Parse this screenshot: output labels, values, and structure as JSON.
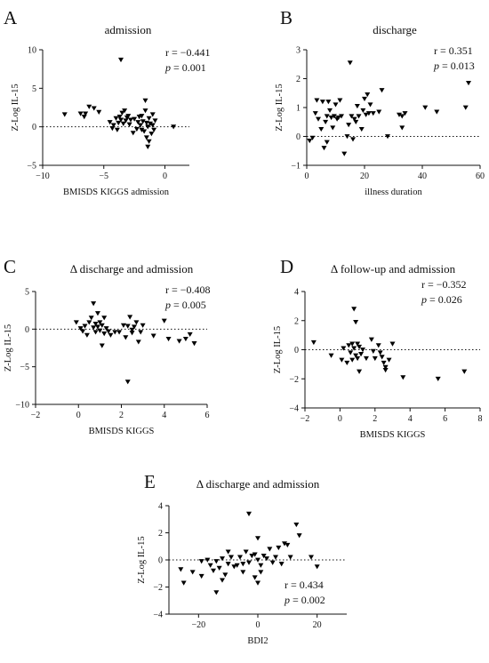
{
  "chart_data": [
    {
      "type": "scatter",
      "panel_letter": "A",
      "title": "admission",
      "xlabel": "BMISDS KIGGS admission",
      "ylabel": "Z-Log IL-15",
      "xlim": [
        -10,
        2
      ],
      "ylim": [
        -5,
        10
      ],
      "xticks": [
        -10,
        -5,
        0
      ],
      "yticks": [
        -5,
        0,
        5,
        10
      ],
      "grid": false,
      "reference_line_y": 0,
      "stat_r": "r = −0.441",
      "stat_p_label": "p",
      "stat_p_value": " = 0.001",
      "stat_position": "top-right",
      "points": [
        [
          -8.2,
          1.6
        ],
        [
          -6.9,
          1.7
        ],
        [
          -6.6,
          1.3
        ],
        [
          -6.5,
          1.7
        ],
        [
          -6.2,
          2.6
        ],
        [
          -5.8,
          2.4
        ],
        [
          -5.4,
          1.9
        ],
        [
          -4.5,
          0.6
        ],
        [
          -4.3,
          -0.2
        ],
        [
          -4.2,
          0.2
        ],
        [
          -4.0,
          1.1
        ],
        [
          -3.9,
          -0.4
        ],
        [
          -3.8,
          0.5
        ],
        [
          -3.7,
          1.3
        ],
        [
          -3.6,
          8.7
        ],
        [
          -3.6,
          0.9
        ],
        [
          -3.5,
          1.8
        ],
        [
          -3.4,
          0.4
        ],
        [
          -3.3,
          2.1
        ],
        [
          -3.2,
          0.8
        ],
        [
          -3.1,
          1.2
        ],
        [
          -3.0,
          1.4
        ],
        [
          -2.9,
          0.3
        ],
        [
          -2.8,
          0.9
        ],
        [
          -2.6,
          -0.8
        ],
        [
          -2.5,
          1.0
        ],
        [
          -2.3,
          -0.3
        ],
        [
          -2.2,
          0.6
        ],
        [
          -2.1,
          1.3
        ],
        [
          -2.0,
          0.2
        ],
        [
          -1.9,
          -0.4
        ],
        [
          -1.9,
          1.4
        ],
        [
          -1.8,
          0.7
        ],
        [
          -1.7,
          -0.6
        ],
        [
          -1.6,
          2.1
        ],
        [
          -1.6,
          3.4
        ],
        [
          -1.5,
          0.5
        ],
        [
          -1.5,
          -1.4
        ],
        [
          -1.4,
          0.0
        ],
        [
          -1.4,
          -2.6
        ],
        [
          -1.3,
          1.1
        ],
        [
          -1.3,
          -1.9
        ],
        [
          -1.2,
          0.4
        ],
        [
          -1.1,
          -0.9
        ],
        [
          -1.0,
          0.2
        ],
        [
          -1.0,
          1.6
        ],
        [
          -0.9,
          -0.4
        ],
        [
          -0.8,
          0.8
        ],
        [
          0.7,
          0.0
        ]
      ]
    },
    {
      "type": "scatter",
      "panel_letter": "B",
      "title": "discharge",
      "xlabel": "illness duration",
      "ylabel": "Z-Log IL-15",
      "xlim": [
        0,
        60
      ],
      "ylim": [
        -1,
        3
      ],
      "xticks": [
        0,
        20,
        40,
        60
      ],
      "yticks": [
        -1,
        0,
        1,
        2,
        3
      ],
      "grid": false,
      "reference_line_y": 0,
      "stat_r": "r = 0.351",
      "stat_p_label": "p",
      "stat_p_value": " = 0.013",
      "stat_position": "top-right",
      "points": [
        [
          1,
          -0.15
        ],
        [
          2,
          -0.05
        ],
        [
          3,
          0.8
        ],
        [
          3.5,
          1.25
        ],
        [
          4,
          0.6
        ],
        [
          5,
          0.25
        ],
        [
          5.5,
          1.2
        ],
        [
          6,
          -0.4
        ],
        [
          6.5,
          0.5
        ],
        [
          7,
          0.7
        ],
        [
          7,
          -0.2
        ],
        [
          7.5,
          1.2
        ],
        [
          8,
          0.9
        ],
        [
          8.5,
          0.65
        ],
        [
          9,
          0.3
        ],
        [
          9.5,
          0.7
        ],
        [
          10,
          1.1
        ],
        [
          10.5,
          0.6
        ],
        [
          11,
          0.65
        ],
        [
          11.5,
          1.25
        ],
        [
          12,
          0.7
        ],
        [
          13,
          -0.6
        ],
        [
          14,
          0.0
        ],
        [
          14.5,
          0.4
        ],
        [
          15,
          2.55
        ],
        [
          15.5,
          0.7
        ],
        [
          16,
          -0.1
        ],
        [
          16.5,
          0.6
        ],
        [
          17,
          0.5
        ],
        [
          17.5,
          1.05
        ],
        [
          18,
          0.7
        ],
        [
          19,
          0.25
        ],
        [
          19.5,
          0.9
        ],
        [
          20,
          1.3
        ],
        [
          20.5,
          0.75
        ],
        [
          21,
          1.45
        ],
        [
          21.5,
          0.8
        ],
        [
          22,
          1.1
        ],
        [
          23,
          0.8
        ],
        [
          25,
          0.85
        ],
        [
          26,
          1.6
        ],
        [
          28,
          0.0
        ],
        [
          32,
          0.75
        ],
        [
          33,
          0.7
        ],
        [
          33,
          0.3
        ],
        [
          34,
          0.8
        ],
        [
          41,
          1.0
        ],
        [
          45,
          0.85
        ],
        [
          55,
          1.0
        ],
        [
          56,
          1.85
        ]
      ]
    },
    {
      "type": "scatter",
      "panel_letter": "C",
      "title": "Δ discharge and admission",
      "xlabel": "BMISDS KIGGS",
      "ylabel": "Z-Log IL-15",
      "xlim": [
        -2,
        6
      ],
      "ylim": [
        -10,
        5
      ],
      "xticks": [
        -2,
        0,
        2,
        4,
        6
      ],
      "yticks": [
        -10,
        -5,
        0,
        5
      ],
      "grid": false,
      "reference_line_y": 0,
      "stat_r": "r = −0.408",
      "stat_p_label": "p",
      "stat_p_value": " = 0.005",
      "stat_position": "top-right",
      "points": [
        [
          -0.1,
          0.9
        ],
        [
          0.1,
          0.1
        ],
        [
          0.2,
          -0.3
        ],
        [
          0.3,
          0.4
        ],
        [
          0.4,
          -0.8
        ],
        [
          0.5,
          0.9
        ],
        [
          0.6,
          1.5
        ],
        [
          0.7,
          3.4
        ],
        [
          0.7,
          0.2
        ],
        [
          0.8,
          0.7
        ],
        [
          0.8,
          -0.4
        ],
        [
          0.9,
          2.1
        ],
        [
          0.9,
          0.3
        ],
        [
          1.0,
          0.9
        ],
        [
          1.0,
          -0.2
        ],
        [
          1.1,
          -2.2
        ],
        [
          1.1,
          0.5
        ],
        [
          1.2,
          1.5
        ],
        [
          1.2,
          -0.6
        ],
        [
          1.3,
          0.1
        ],
        [
          1.4,
          -0.3
        ],
        [
          1.5,
          -0.8
        ],
        [
          1.7,
          -0.4
        ],
        [
          1.9,
          -0.4
        ],
        [
          2.1,
          0.5
        ],
        [
          2.2,
          -1.1
        ],
        [
          2.3,
          0.4
        ],
        [
          2.3,
          -7.0
        ],
        [
          2.4,
          1.6
        ],
        [
          2.5,
          -0.5
        ],
        [
          2.5,
          -0.1
        ],
        [
          2.6,
          0.3
        ],
        [
          2.7,
          0.9
        ],
        [
          2.8,
          -1.7
        ],
        [
          2.9,
          -0.4
        ],
        [
          3.0,
          0.5
        ],
        [
          3.5,
          -0.9
        ],
        [
          4.0,
          1.1
        ],
        [
          4.2,
          -1.3
        ],
        [
          4.7,
          -1.6
        ],
        [
          5.0,
          -1.3
        ],
        [
          5.2,
          -0.7
        ],
        [
          5.4,
          -1.9
        ]
      ]
    },
    {
      "type": "scatter",
      "panel_letter": "D",
      "title": "Δ follow-up and admission",
      "xlabel": "BMISDS KIGGS",
      "ylabel": "Z-Log IL-15",
      "xlim": [
        -2,
        8
      ],
      "ylim": [
        -4,
        4
      ],
      "xticks": [
        -2,
        0,
        2,
        4,
        6,
        8
      ],
      "yticks": [
        -4,
        -2,
        0,
        2,
        4
      ],
      "grid": false,
      "reference_line_y": 0,
      "stat_r": "r = −0.352",
      "stat_p_label": "p",
      "stat_p_value": " = 0.026",
      "stat_position": "top-right",
      "points": [
        [
          -1.5,
          0.5
        ],
        [
          -0.5,
          -0.4
        ],
        [
          0.1,
          -0.7
        ],
        [
          0.2,
          0.1
        ],
        [
          0.4,
          -0.9
        ],
        [
          0.5,
          0.3
        ],
        [
          0.6,
          -0.2
        ],
        [
          0.7,
          0.4
        ],
        [
          0.7,
          -0.7
        ],
        [
          0.8,
          2.8
        ],
        [
          0.8,
          0.1
        ],
        [
          0.9,
          1.9
        ],
        [
          0.9,
          -0.4
        ],
        [
          1.0,
          0.4
        ],
        [
          1.0,
          -0.6
        ],
        [
          1.1,
          -1.5
        ],
        [
          1.1,
          0.2
        ],
        [
          1.2,
          -0.3
        ],
        [
          1.3,
          0.0
        ],
        [
          1.5,
          -0.6
        ],
        [
          1.8,
          0.7
        ],
        [
          1.9,
          -0.1
        ],
        [
          2.0,
          -0.6
        ],
        [
          2.2,
          0.3
        ],
        [
          2.3,
          -0.2
        ],
        [
          2.4,
          -0.5
        ],
        [
          2.5,
          -0.9
        ],
        [
          2.6,
          -1.2
        ],
        [
          2.6,
          -1.4
        ],
        [
          2.8,
          -0.7
        ],
        [
          3.0,
          0.4
        ],
        [
          3.6,
          -1.9
        ],
        [
          5.6,
          -2.0
        ],
        [
          7.1,
          -1.5
        ]
      ]
    },
    {
      "type": "scatter",
      "panel_letter": "E",
      "title": "Δ discharge and admission",
      "xlabel": "BDI2",
      "ylabel": "Z-Log IL-15",
      "xlim": [
        -30,
        30
      ],
      "ylim": [
        -4,
        4
      ],
      "xticks": [
        -20,
        0,
        20
      ],
      "yticks": [
        -4,
        -2,
        0,
        2,
        4
      ],
      "grid": false,
      "reference_line_y": 0,
      "stat_r": "r = 0.434",
      "stat_p_label": "p",
      "stat_p_value": " = 0.002",
      "stat_position": "bottom-right",
      "points": [
        [
          -26,
          -0.7
        ],
        [
          -25,
          -1.7
        ],
        [
          -22,
          -0.9
        ],
        [
          -19,
          -1.2
        ],
        [
          -19,
          -0.1
        ],
        [
          -17,
          0.0
        ],
        [
          -16,
          -0.4
        ],
        [
          -15,
          -0.8
        ],
        [
          -14,
          -0.1
        ],
        [
          -14,
          -2.4
        ],
        [
          -13,
          -0.6
        ],
        [
          -12,
          -1.5
        ],
        [
          -12,
          0.1
        ],
        [
          -11,
          -1.1
        ],
        [
          -10,
          0.6
        ],
        [
          -10,
          -0.3
        ],
        [
          -9,
          0.2
        ],
        [
          -8,
          -0.5
        ],
        [
          -7,
          -0.4
        ],
        [
          -6,
          0.2
        ],
        [
          -5,
          -0.9
        ],
        [
          -5,
          -0.3
        ],
        [
          -4,
          0.6
        ],
        [
          -3,
          3.4
        ],
        [
          -3,
          -0.2
        ],
        [
          -2,
          0.3
        ],
        [
          -1,
          -1.3
        ],
        [
          -1,
          0.4
        ],
        [
          0,
          1.6
        ],
        [
          0,
          -1.7
        ],
        [
          0,
          0.0
        ],
        [
          1,
          -0.4
        ],
        [
          1,
          -0.9
        ],
        [
          2,
          0.3
        ],
        [
          3,
          0.1
        ],
        [
          4,
          0.8
        ],
        [
          5,
          -0.2
        ],
        [
          6,
          0.2
        ],
        [
          7,
          0.9
        ],
        [
          8,
          -0.3
        ],
        [
          9,
          1.2
        ],
        [
          10,
          1.1
        ],
        [
          11,
          0.2
        ],
        [
          13,
          2.6
        ],
        [
          14,
          1.8
        ],
        [
          18,
          0.2
        ],
        [
          20,
          -0.5
        ]
      ]
    }
  ]
}
